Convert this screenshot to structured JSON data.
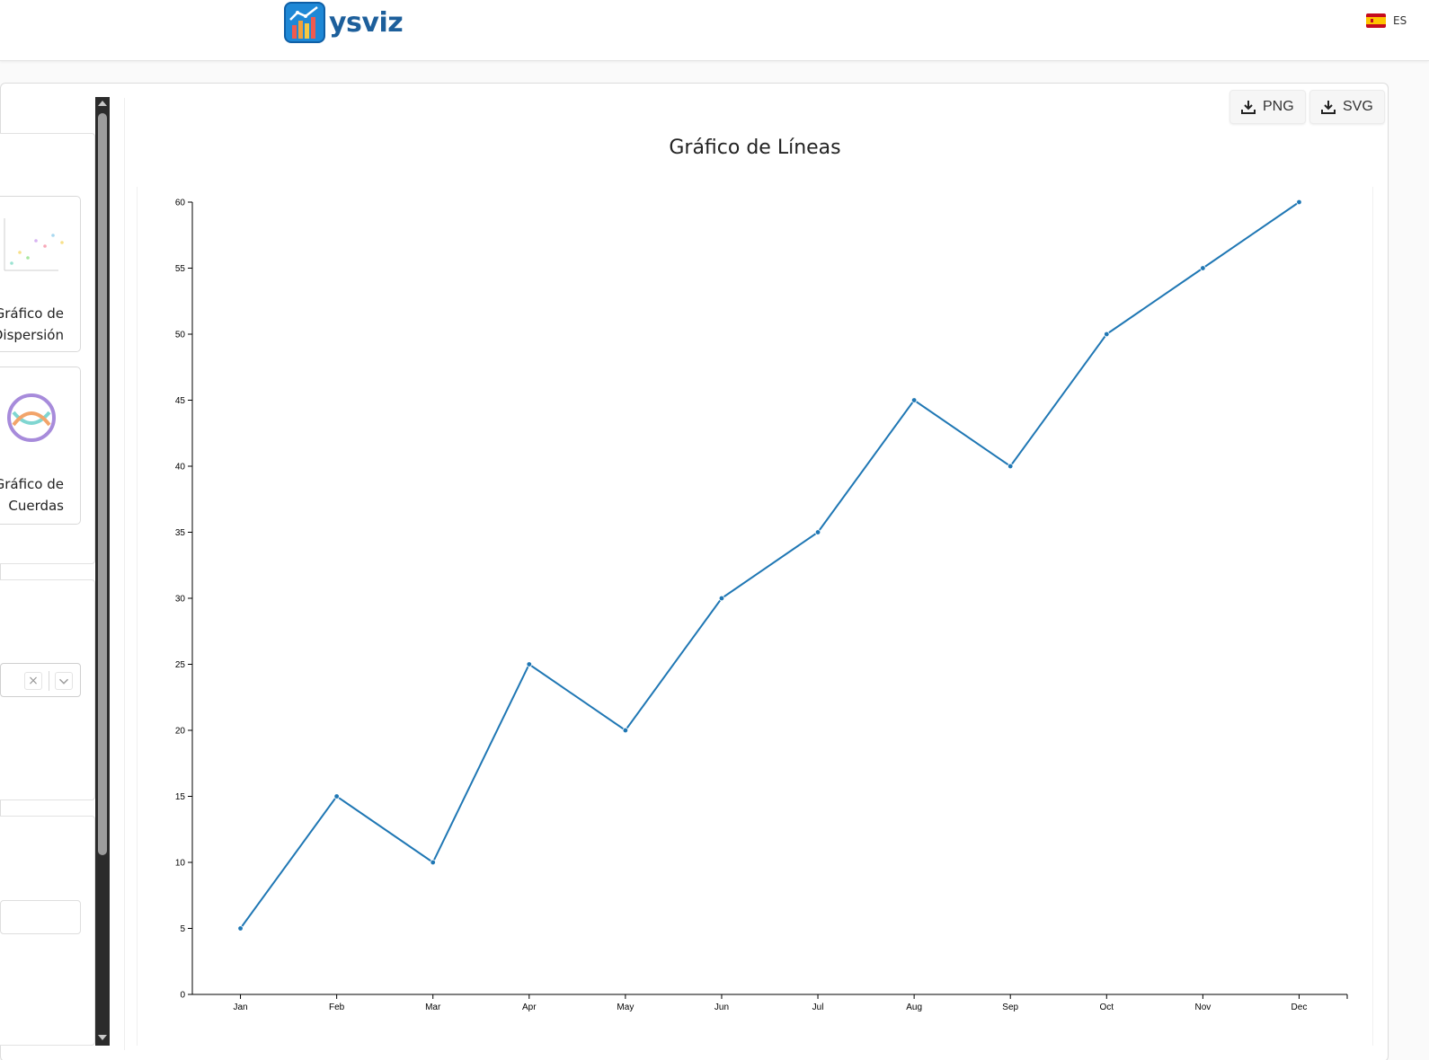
{
  "header": {
    "logo_text": "ysviz",
    "logo_icon": "bar-chart-logo-icon",
    "language": {
      "flag": "spain-flag-icon",
      "code": "ES"
    }
  },
  "sidebar": {
    "chart_types": [
      {
        "label_line1": "Gráfico de",
        "label_line2": "Dispersión",
        "icon": "scatter-chart-icon"
      },
      {
        "label_line1": "Gráfico de",
        "label_line2": "Cuerdas",
        "icon": "chord-chart-icon"
      }
    ],
    "select": {
      "clear_icon": "×",
      "dropdown_icon": "chevron-down-icon"
    }
  },
  "toolbar": {
    "png_label": "PNG",
    "svg_label": "SVG",
    "download_icon": "download-icon"
  },
  "colors": {
    "line": "#1f77b4",
    "brand": "#1d5f9b"
  },
  "chart_data": {
    "type": "line",
    "title": "Gráfico de Líneas",
    "categories": [
      "Jan",
      "Feb",
      "Mar",
      "Apr",
      "May",
      "Jun",
      "Jul",
      "Aug",
      "Sep",
      "Oct",
      "Nov",
      "Dec"
    ],
    "values": [
      5,
      15,
      10,
      25,
      20,
      30,
      35,
      45,
      40,
      50,
      55,
      60
    ],
    "yticks": [
      0,
      5,
      10,
      15,
      20,
      25,
      30,
      35,
      40,
      45,
      50,
      55,
      60
    ],
    "ylim": [
      0,
      60
    ],
    "xlabel": "",
    "ylabel": "",
    "grid": false,
    "legend": "none"
  }
}
